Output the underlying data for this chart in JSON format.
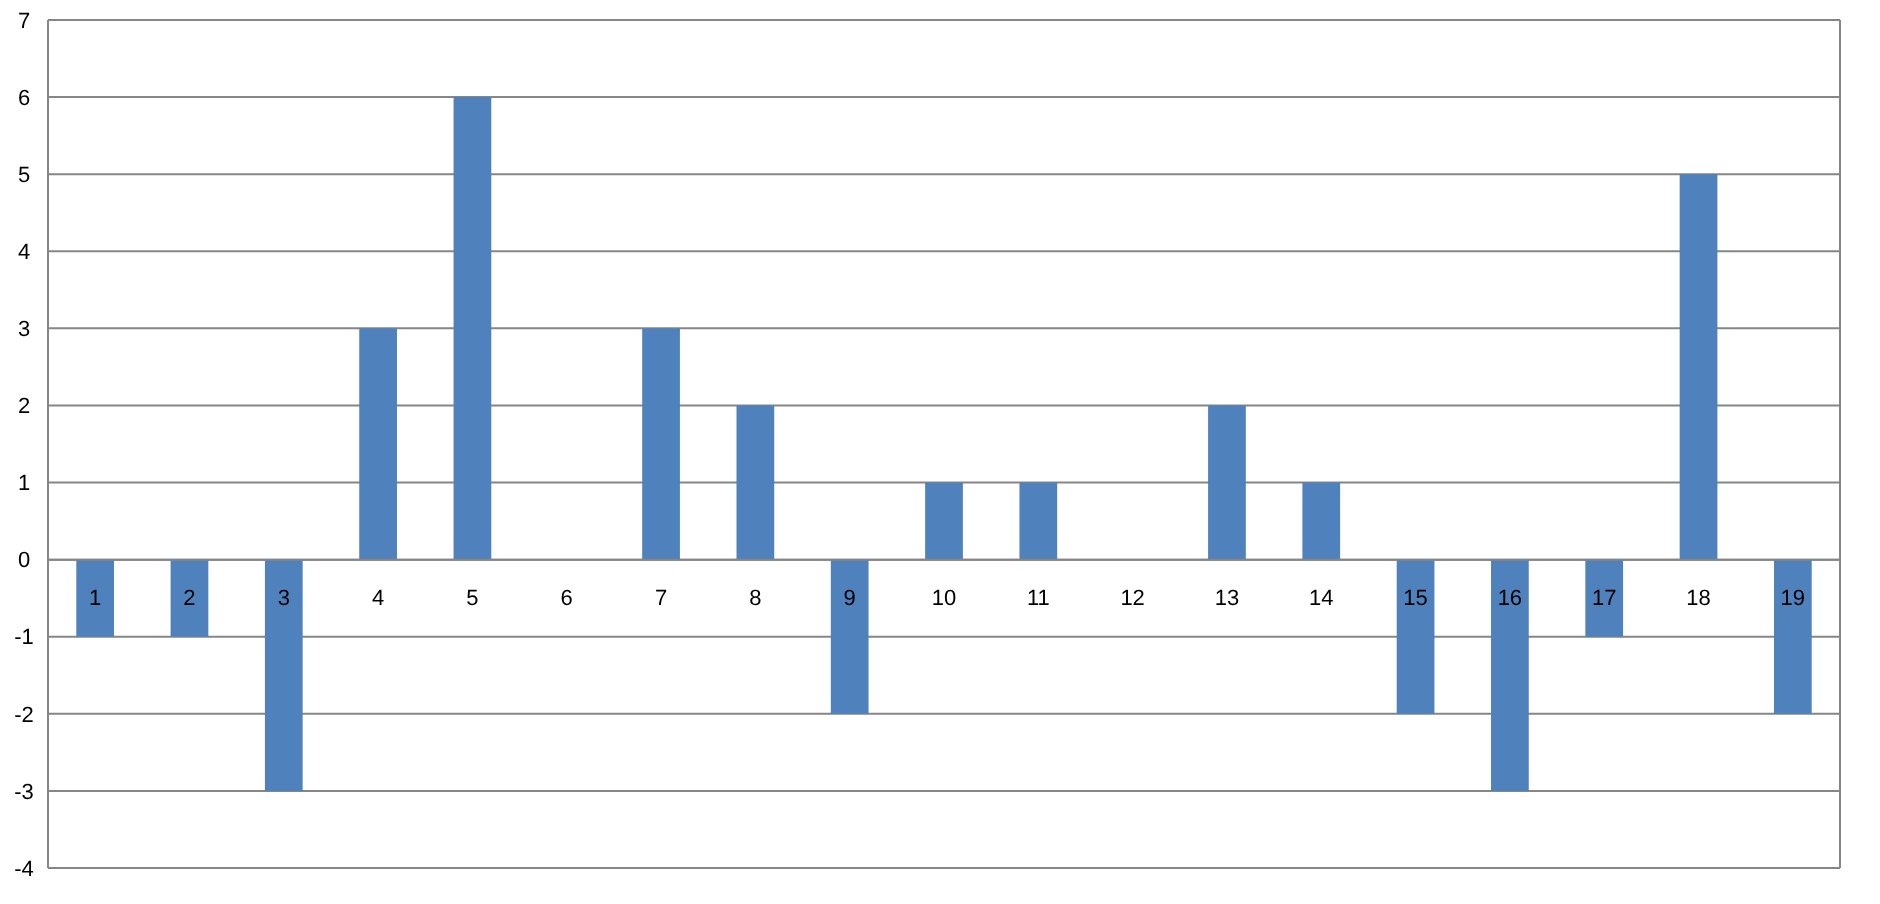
{
  "chart_data": {
    "type": "bar",
    "categories": [
      "1",
      "2",
      "3",
      "4",
      "5",
      "6",
      "7",
      "8",
      "9",
      "10",
      "11",
      "12",
      "13",
      "14",
      "15",
      "16",
      "17",
      "18",
      "19"
    ],
    "values": [
      -1,
      -1,
      -3,
      3,
      6,
      0,
      3,
      2,
      -2,
      1,
      1,
      0,
      2,
      1,
      -2,
      -3,
      -1,
      5,
      -2
    ],
    "color": "#4f81bd",
    "ylim": [
      -4,
      7
    ],
    "yticks": [
      -4,
      -3,
      -2,
      -1,
      0,
      1,
      2,
      3,
      4,
      5,
      6,
      7
    ],
    "grid": "y"
  }
}
